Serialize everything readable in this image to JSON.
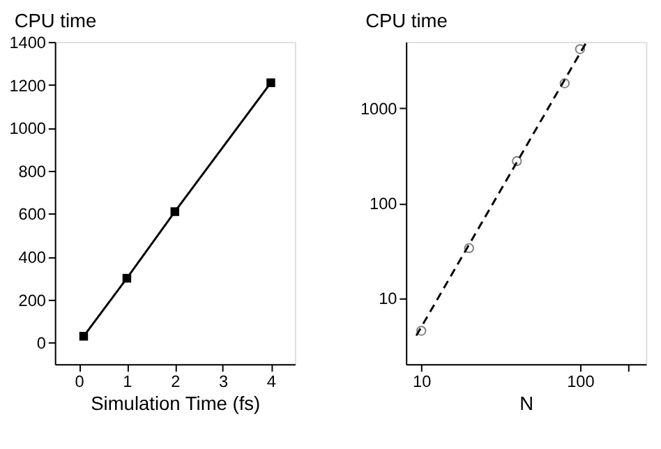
{
  "chart_data": [
    {
      "type": "line",
      "ylabel": "CPU time",
      "xlabel": "Simulation Time (fs)",
      "x": [
        0.1,
        1,
        2,
        4
      ],
      "marker": "square",
      "series": [
        {
          "color": "#000000",
          "values": [
            30,
            300,
            610,
            1210
          ]
        }
      ],
      "xlim": [
        -0.5,
        4.5
      ],
      "xticks": [
        0,
        1,
        2,
        3,
        4
      ],
      "ylim": [
        -100,
        1400
      ],
      "yticks": [
        0,
        200,
        400,
        600,
        800,
        1000,
        1200,
        1400
      ],
      "grid": false
    },
    {
      "type": "scatter",
      "ylabel": "CPU time",
      "xlabel": "N",
      "log": "xy",
      "marker": "circle",
      "series": [
        {
          "color": "#808080",
          "x": [
            10,
            20,
            40,
            80,
            100
          ],
          "values": [
            4.5,
            33.5,
            277,
            1830,
            4200
          ]
        },
        {
          "type": "line",
          "line_style": "dashed",
          "marker": "none",
          "color": "#000000",
          "x": [
            9.3,
            110
          ],
          "values": [
            4.0,
            5000
          ]
        }
      ],
      "xlim": [
        8,
        260
      ],
      "xticks": [
        10,
        100,
        {
          "value": 200,
          "label": null
        }
      ],
      "ylim": [
        2,
        5000
      ],
      "yticks": [
        10,
        100,
        1000
      ],
      "grid": false
    }
  ]
}
